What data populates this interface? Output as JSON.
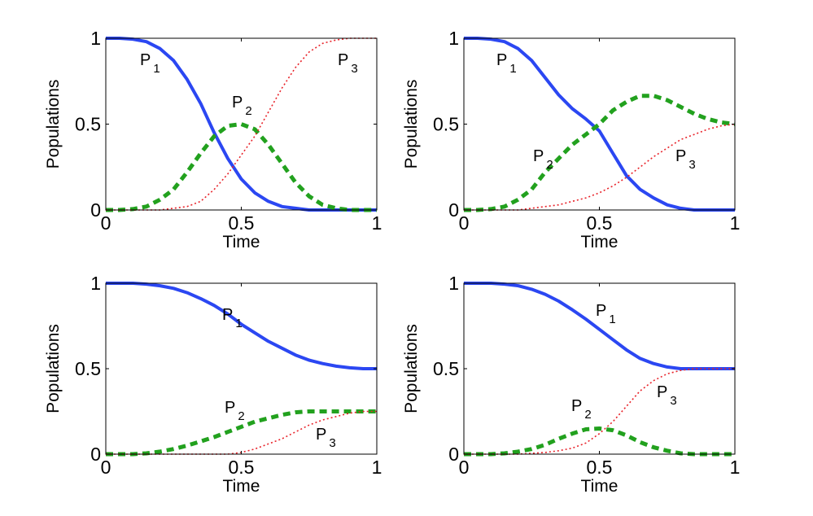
{
  "colors": {
    "P1": "#2b47f2",
    "P2": "#22a11e",
    "P3": "#e8232a"
  },
  "chart_data": [
    {
      "type": "line",
      "xlabel": "Time",
      "ylabel": "Populations",
      "xlim": [
        0,
        1
      ],
      "ylim": [
        0,
        1
      ],
      "xticks": [
        "0",
        "0.5",
        "1"
      ],
      "yticks": [
        "0",
        "0.5",
        "1"
      ],
      "x": [
        0,
        0.05,
        0.1,
        0.15,
        0.2,
        0.25,
        0.3,
        0.35,
        0.4,
        0.45,
        0.5,
        0.55,
        0.6,
        0.65,
        0.7,
        0.75,
        0.8,
        0.85,
        0.9,
        0.95,
        1
      ],
      "series": [
        {
          "key": "P1",
          "name": "P",
          "sub": "1",
          "style": "solid",
          "values": [
            1,
            1,
            0.995,
            0.98,
            0.94,
            0.87,
            0.76,
            0.62,
            0.45,
            0.3,
            0.18,
            0.1,
            0.05,
            0.02,
            0.01,
            0,
            0,
            0,
            0,
            0,
            0
          ]
        },
        {
          "key": "P2",
          "name": "P",
          "sub": "2",
          "style": "dashed",
          "values": [
            0,
            0,
            0.005,
            0.02,
            0.06,
            0.12,
            0.22,
            0.33,
            0.43,
            0.49,
            0.5,
            0.47,
            0.38,
            0.27,
            0.16,
            0.08,
            0.03,
            0.01,
            0,
            0,
            0
          ]
        },
        {
          "key": "P3",
          "name": "P",
          "sub": "3",
          "style": "dotted",
          "values": [
            0,
            0,
            0,
            0,
            0,
            0.01,
            0.02,
            0.05,
            0.12,
            0.21,
            0.32,
            0.43,
            0.57,
            0.71,
            0.83,
            0.92,
            0.97,
            0.99,
            1,
            1,
            1
          ]
        }
      ]
    },
    {
      "type": "line",
      "xlabel": "Time",
      "ylabel": "Populations",
      "xlim": [
        0,
        1
      ],
      "ylim": [
        0,
        1
      ],
      "xticks": [
        "0",
        "0.5",
        "1"
      ],
      "yticks": [
        "0",
        "0.5",
        "1"
      ],
      "x": [
        0,
        0.05,
        0.1,
        0.15,
        0.2,
        0.25,
        0.3,
        0.35,
        0.4,
        0.45,
        0.5,
        0.55,
        0.6,
        0.65,
        0.7,
        0.75,
        0.8,
        0.85,
        0.9,
        0.95,
        1
      ],
      "series": [
        {
          "key": "P1",
          "name": "P",
          "sub": "1",
          "style": "solid",
          "values": [
            1,
            1,
            0.995,
            0.98,
            0.94,
            0.87,
            0.77,
            0.67,
            0.59,
            0.53,
            0.46,
            0.33,
            0.2,
            0.12,
            0.07,
            0.03,
            0.01,
            0,
            0,
            0,
            0
          ]
        },
        {
          "key": "P2",
          "name": "P",
          "sub": "2",
          "style": "dashed",
          "values": [
            0,
            0,
            0.005,
            0.02,
            0.06,
            0.12,
            0.22,
            0.3,
            0.38,
            0.44,
            0.5,
            0.58,
            0.63,
            0.665,
            0.665,
            0.64,
            0.6,
            0.56,
            0.53,
            0.51,
            0.5
          ]
        },
        {
          "key": "P3",
          "name": "P",
          "sub": "3",
          "style": "dotted",
          "values": [
            0,
            0,
            0,
            0,
            0,
            0.01,
            0.02,
            0.03,
            0.05,
            0.07,
            0.1,
            0.14,
            0.19,
            0.25,
            0.31,
            0.36,
            0.41,
            0.44,
            0.47,
            0.49,
            0.5
          ]
        }
      ]
    },
    {
      "type": "line",
      "xlabel": "Time",
      "ylabel": "Populations",
      "xlim": [
        0,
        1
      ],
      "ylim": [
        0,
        1
      ],
      "xticks": [
        "0",
        "0.5",
        "1"
      ],
      "yticks": [
        "0",
        "0.5",
        "1"
      ],
      "x": [
        0,
        0.05,
        0.1,
        0.15,
        0.2,
        0.25,
        0.3,
        0.35,
        0.4,
        0.45,
        0.5,
        0.55,
        0.6,
        0.65,
        0.7,
        0.75,
        0.8,
        0.85,
        0.9,
        0.95,
        1
      ],
      "series": [
        {
          "key": "P1",
          "name": "P",
          "sub": "1",
          "style": "solid",
          "values": [
            1,
            1,
            1,
            0.995,
            0.985,
            0.97,
            0.945,
            0.91,
            0.87,
            0.82,
            0.76,
            0.71,
            0.66,
            0.62,
            0.58,
            0.55,
            0.53,
            0.515,
            0.505,
            0.5,
            0.5
          ]
        },
        {
          "key": "P2",
          "name": "P",
          "sub": "2",
          "style": "dashed",
          "values": [
            0,
            0,
            0,
            0.005,
            0.015,
            0.03,
            0.05,
            0.075,
            0.1,
            0.13,
            0.16,
            0.19,
            0.21,
            0.23,
            0.245,
            0.25,
            0.25,
            0.25,
            0.25,
            0.25,
            0.25
          ]
        },
        {
          "key": "P3",
          "name": "P",
          "sub": "3",
          "style": "dotted",
          "values": [
            0,
            0,
            0,
            0,
            0,
            0,
            0,
            0,
            0,
            0,
            0.01,
            0.03,
            0.06,
            0.09,
            0.13,
            0.17,
            0.2,
            0.22,
            0.24,
            0.25,
            0.25
          ]
        }
      ]
    },
    {
      "type": "line",
      "xlabel": "Time",
      "ylabel": "Populations",
      "xlim": [
        0,
        1
      ],
      "ylim": [
        0,
        1
      ],
      "xticks": [
        "0",
        "0.5",
        "1"
      ],
      "yticks": [
        "0",
        "0.5",
        "1"
      ],
      "x": [
        0,
        0.05,
        0.1,
        0.15,
        0.2,
        0.25,
        0.3,
        0.35,
        0.4,
        0.45,
        0.5,
        0.55,
        0.6,
        0.65,
        0.7,
        0.75,
        0.8,
        0.85,
        0.9,
        0.95,
        1
      ],
      "series": [
        {
          "key": "P1",
          "name": "P",
          "sub": "1",
          "style": "solid",
          "values": [
            1,
            1,
            1,
            0.995,
            0.985,
            0.965,
            0.935,
            0.895,
            0.845,
            0.79,
            0.73,
            0.67,
            0.61,
            0.56,
            0.53,
            0.51,
            0.5,
            0.5,
            0.5,
            0.5,
            0.5
          ]
        },
        {
          "key": "P2",
          "name": "P",
          "sub": "2",
          "style": "dashed",
          "values": [
            0,
            0,
            0,
            0.005,
            0.015,
            0.03,
            0.055,
            0.09,
            0.12,
            0.145,
            0.15,
            0.14,
            0.11,
            0.07,
            0.04,
            0.02,
            0.005,
            0,
            0,
            0,
            0
          ]
        },
        {
          "key": "P3",
          "name": "P",
          "sub": "3",
          "style": "dotted",
          "values": [
            0,
            0,
            0,
            0,
            0,
            0.005,
            0.01,
            0.02,
            0.035,
            0.065,
            0.12,
            0.19,
            0.28,
            0.37,
            0.43,
            0.47,
            0.49,
            0.5,
            0.5,
            0.5,
            0.5
          ]
        }
      ]
    }
  ]
}
